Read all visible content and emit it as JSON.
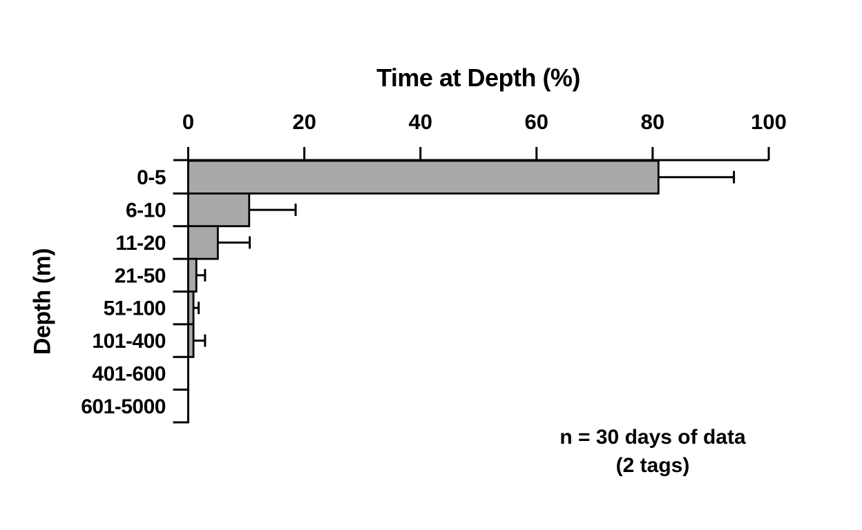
{
  "chart_data": {
    "type": "bar",
    "orientation": "horizontal",
    "title": "Time at Depth (%)",
    "xlabel": "Time at Depth (%)",
    "ylabel": "Depth (m)",
    "categories": [
      "0-5",
      "6-10",
      "11-20",
      "21-50",
      "51-100",
      "101-400",
      "401-600",
      "601-5000"
    ],
    "values": [
      81,
      10.5,
      5.1,
      1.4,
      0.9,
      0.9,
      0,
      0
    ],
    "error_plus": [
      13,
      8,
      5.5,
      1.5,
      0.9,
      2,
      0,
      0
    ],
    "x_ticks": [
      0,
      20,
      40,
      60,
      80,
      100
    ],
    "xlim": [
      0,
      100
    ],
    "grid": false,
    "legend": "none",
    "bar_color": "#a9a9a9",
    "bar_edge_color": "#000000",
    "axis_color": "#000000",
    "annotation": {
      "line1": "n = 30 days of data",
      "line2": "(2 tags)"
    }
  }
}
